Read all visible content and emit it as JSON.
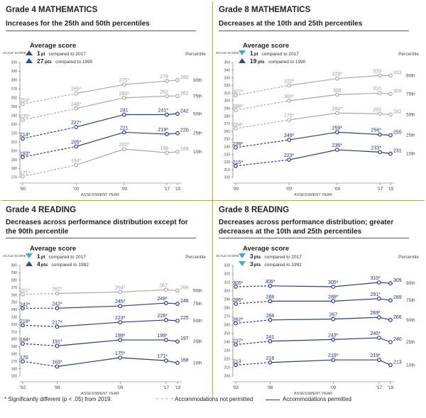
{
  "colors": {
    "gold": "#c9a227",
    "navy": "#2b3990",
    "gray": "#a7a9ac",
    "arrow_up": "#1f4e9a",
    "arrow_down": "#3fa9dd"
  },
  "footer": {
    "note": "* Significantly different (p < .05) from 2019.",
    "legend_dashed": "Accommodations not permitted",
    "legend_solid": "Accommodations permitted"
  },
  "chart_data": [
    {
      "type": "line",
      "title": "Grade 4 MATHEMATICS",
      "subtitle": "Increases for the 25th and 50th percentiles",
      "legend_title": "Average score",
      "legend_rows": [
        {
          "arrow": "up",
          "value": "1",
          "unit": "pt",
          "text": "compared to 2017"
        },
        {
          "arrow": "up",
          "value": "27",
          "unit": "pts",
          "text": "compared to 1990"
        }
      ],
      "ylabel": "SCALE SCORE",
      "percentile_label": "Percentile",
      "xlabel": "ASSESSMENT YEAR",
      "ylim": [
        170,
        300
      ],
      "yticks": [
        170,
        180,
        190,
        200,
        210,
        220,
        230,
        240,
        250,
        260,
        270,
        280,
        290,
        300
      ],
      "xticks": [
        {
          "year": 1990,
          "label": "'90"
        },
        {
          "year": 2000,
          "label": "'00"
        },
        {
          "year": 2009,
          "label": "'09"
        },
        {
          "year": 2017,
          "label": "'17"
        },
        {
          "year": 2019,
          "label": "'19"
        }
      ],
      "series": [
        {
          "name": "90th",
          "highlight": false,
          "points": [
            {
              "x": 1990,
              "y": 253,
              "label": "253*",
              "dash": true
            },
            {
              "x": 2000,
              "y": 265,
              "label": "265*"
            },
            {
              "x": 2009,
              "y": 275,
              "label": "275*"
            },
            {
              "x": 2017,
              "y": 279,
              "label": "279"
            },
            {
              "x": 2019,
              "y": 280,
              "label": "280"
            }
          ]
        },
        {
          "name": "75th",
          "highlight": false,
          "points": [
            {
              "x": 1990,
              "y": 235,
              "label": "235*",
              "dash": true
            },
            {
              "x": 2000,
              "y": 248,
              "label": "248*"
            },
            {
              "x": 2009,
              "y": 260,
              "label": "260*"
            },
            {
              "x": 2017,
              "y": 262,
              "label": "262"
            },
            {
              "x": 2019,
              "y": 262,
              "label": "262"
            }
          ]
        },
        {
          "name": "50th",
          "highlight": true,
          "points": [
            {
              "x": 1990,
              "y": 214,
              "label": "214*",
              "dash": true
            },
            {
              "x": 2000,
              "y": 227,
              "label": "227*"
            },
            {
              "x": 2009,
              "y": 241,
              "label": "241"
            },
            {
              "x": 2017,
              "y": 241,
              "label": "241*"
            },
            {
              "x": 2019,
              "y": 242,
              "label": "242"
            }
          ]
        },
        {
          "name": "25th",
          "highlight": true,
          "points": [
            {
              "x": 1990,
              "y": 193,
              "label": "193*",
              "dash": true
            },
            {
              "x": 2000,
              "y": 205,
              "label": "205*"
            },
            {
              "x": 2009,
              "y": 221,
              "label": "221"
            },
            {
              "x": 2017,
              "y": 219,
              "label": "219*"
            },
            {
              "x": 2019,
              "y": 220,
              "label": "220"
            }
          ]
        },
        {
          "name": "10th",
          "highlight": false,
          "points": [
            {
              "x": 1990,
              "y": 171,
              "label": "171*",
              "dash": true
            },
            {
              "x": 2000,
              "y": 184,
              "label": "184*"
            },
            {
              "x": 2009,
              "y": 202,
              "label": "202*"
            },
            {
              "x": 2017,
              "y": 198,
              "label": "198"
            },
            {
              "x": 2019,
              "y": 199,
              "label": "199"
            }
          ]
        }
      ]
    },
    {
      "type": "line",
      "title": "Grade 8 MATHEMATICS",
      "subtitle": "Decreases at the 10th and 25th percentiles",
      "legend_title": "Average score",
      "legend_rows": [
        {
          "arrow": "down",
          "value": "1",
          "unit": "pt",
          "text": "compared to 2017"
        },
        {
          "arrow": "up",
          "value": "19",
          "unit": "pts",
          "text": "compared to 1990"
        }
      ],
      "ylabel": "SCALE SCORE",
      "percentile_label": "Percentile",
      "xlabel": "ASSESSMENT YEAR",
      "ylim": [
        200,
        350
      ],
      "yticks": [
        200,
        210,
        220,
        230,
        240,
        250,
        260,
        270,
        280,
        290,
        300,
        310,
        320,
        330,
        340,
        350
      ],
      "xticks": [
        {
          "year": 1990,
          "label": "'90"
        },
        {
          "year": 2000,
          "label": "'00"
        },
        {
          "year": 2009,
          "label": "'09"
        },
        {
          "year": 2017,
          "label": "'17"
        },
        {
          "year": 2019,
          "label": "'19"
        }
      ],
      "series": [
        {
          "name": "90th",
          "highlight": false,
          "points": [
            {
              "x": 1990,
              "y": 307,
              "label": "307*",
              "dash": true
            },
            {
              "x": 2000,
              "y": 320,
              "label": "320*"
            },
            {
              "x": 2009,
              "y": 329,
              "label": "329*"
            },
            {
              "x": 2017,
              "y": 333,
              "label": "333"
            },
            {
              "x": 2019,
              "y": 333,
              "label": "333"
            }
          ]
        },
        {
          "name": "75th",
          "highlight": false,
          "points": [
            {
              "x": 1990,
              "y": 288,
              "label": "288*",
              "dash": true
            },
            {
              "x": 2000,
              "y": 300,
              "label": "300*"
            },
            {
              "x": 2009,
              "y": 308,
              "label": "308"
            },
            {
              "x": 2017,
              "y": 310,
              "label": "310"
            },
            {
              "x": 2019,
              "y": 309,
              "label": "309"
            }
          ]
        },
        {
          "name": "50th",
          "highlight": false,
          "points": [
            {
              "x": 1990,
              "y": 264,
              "label": "264*",
              "dash": true
            },
            {
              "x": 2000,
              "y": 275,
              "label": "275*"
            },
            {
              "x": 2009,
              "y": 284,
              "label": "284*"
            },
            {
              "x": 2017,
              "y": 283,
              "label": "283"
            },
            {
              "x": 2019,
              "y": 282,
              "label": "282"
            }
          ]
        },
        {
          "name": "25th",
          "highlight": true,
          "points": [
            {
              "x": 1990,
              "y": 239,
              "label": "239*",
              "dash": true
            },
            {
              "x": 2000,
              "y": 249,
              "label": "249*"
            },
            {
              "x": 2009,
              "y": 259,
              "label": "259*"
            },
            {
              "x": 2017,
              "y": 256,
              "label": "256*"
            },
            {
              "x": 2019,
              "y": 255,
              "label": "255"
            }
          ]
        },
        {
          "name": "10th",
          "highlight": true,
          "points": [
            {
              "x": 1990,
              "y": 215,
              "label": "215*",
              "dash": true
            },
            {
              "x": 2000,
              "y": 223,
              "label": "223*"
            },
            {
              "x": 2009,
              "y": 236,
              "label": "236*"
            },
            {
              "x": 2017,
              "y": 233,
              "label": "233*"
            },
            {
              "x": 2019,
              "y": 231,
              "label": "231"
            }
          ]
        }
      ]
    },
    {
      "type": "line",
      "title": "Grade 4 READING",
      "subtitle": "Decreases across performance distribution except for the 90th percentile",
      "legend_title": "Average score",
      "legend_rows": [
        {
          "arrow": "down",
          "value": "1",
          "unit": "pt",
          "text": "compared to 2017"
        },
        {
          "arrow": "up",
          "value": "4",
          "unit": "pts",
          "text": "compared to 1992"
        }
      ],
      "ylabel": "SCALE SCORE",
      "percentile_label": "Percentile",
      "xlabel": "ASSESSMENT YEAR",
      "ylim": [
        150,
        300
      ],
      "yticks": [
        150,
        160,
        170,
        180,
        190,
        200,
        210,
        220,
        230,
        240,
        250,
        260,
        270,
        280,
        290,
        300
      ],
      "xticks": [
        {
          "year": 1992,
          "label": "'92"
        },
        {
          "year": 1998,
          "label": "'98"
        },
        {
          "year": 2009,
          "label": "'09"
        },
        {
          "year": 2017,
          "label": "'17"
        },
        {
          "year": 2019,
          "label": "'19"
        }
      ],
      "series": [
        {
          "name": "90th",
          "highlight": false,
          "points": [
            {
              "x": 1992,
              "y": 261,
              "label": "261*",
              "dash": true
            },
            {
              "x": 1998,
              "y": 262,
              "label": "262*"
            },
            {
              "x": 2009,
              "y": 264,
              "label": "264*"
            },
            {
              "x": 2017,
              "y": 267,
              "label": "267"
            },
            {
              "x": 2019,
              "y": 266,
              "label": "266"
            }
          ]
        },
        {
          "name": "75th",
          "highlight": true,
          "points": [
            {
              "x": 1992,
              "y": 242,
              "label": "242*",
              "dash": true
            },
            {
              "x": 1998,
              "y": 242,
              "label": "242*"
            },
            {
              "x": 2009,
              "y": 245,
              "label": "245*"
            },
            {
              "x": 2017,
              "y": 249,
              "label": "249*"
            },
            {
              "x": 2019,
              "y": 248,
              "label": "248"
            }
          ]
        },
        {
          "name": "50th",
          "highlight": true,
          "points": [
            {
              "x": 1992,
              "y": 219,
              "label": "219*",
              "dash": true
            },
            {
              "x": 1998,
              "y": 217,
              "label": "217*"
            },
            {
              "x": 2009,
              "y": 223,
              "label": "223*"
            },
            {
              "x": 2017,
              "y": 226,
              "label": "226*"
            },
            {
              "x": 2019,
              "y": 225,
              "label": "225"
            }
          ]
        },
        {
          "name": "25th",
          "highlight": true,
          "points": [
            {
              "x": 1992,
              "y": 194,
              "label": "194*",
              "dash": true
            },
            {
              "x": 1998,
              "y": 191,
              "label": "191*"
            },
            {
              "x": 2009,
              "y": 199,
              "label": "199*"
            },
            {
              "x": 2017,
              "y": 199,
              "label": "199*"
            },
            {
              "x": 2019,
              "y": 197,
              "label": "197"
            }
          ]
        },
        {
          "name": "10th",
          "highlight": true,
          "points": [
            {
              "x": 1992,
              "y": 170,
              "label": "170",
              "dash": true
            },
            {
              "x": 1998,
              "y": 163,
              "label": "163*"
            },
            {
              "x": 2009,
              "y": 175,
              "label": "175*"
            },
            {
              "x": 2017,
              "y": 171,
              "label": "171*"
            },
            {
              "x": 2019,
              "y": 168,
              "label": "168"
            }
          ]
        }
      ]
    },
    {
      "type": "line",
      "title": "Grade 8 READING",
      "subtitle": "Decreases across performance distribution; greater decreases at the 10th and 25th percentiles",
      "legend_title": "Average score",
      "legend_rows": [
        {
          "arrow": "down",
          "value": "3",
          "unit": "pts",
          "text": "compared to 2017"
        },
        {
          "arrow": "down",
          "value": "3",
          "unit": "pts",
          "text": "compared to 1992"
        }
      ],
      "ylabel": "SCALE SCORE",
      "percentile_label": "Percentile",
      "xlabel": "ASSESSMENT YEAR",
      "ylim": [
        200,
        330
      ],
      "yticks": [
        200,
        210,
        220,
        230,
        240,
        250,
        260,
        270,
        280,
        290,
        300,
        310,
        320,
        330
      ],
      "xticks": [
        {
          "year": 1992,
          "label": "'92"
        },
        {
          "year": 1998,
          "label": "'98"
        },
        {
          "year": 2009,
          "label": "'09"
        },
        {
          "year": 2017,
          "label": "'17"
        },
        {
          "year": 2019,
          "label": "'19"
        }
      ],
      "series": [
        {
          "name": "90th",
          "highlight": true,
          "points": [
            {
              "x": 1992,
              "y": 305,
              "label": "305*",
              "dash": true
            },
            {
              "x": 1998,
              "y": 306,
              "label": "306*"
            },
            {
              "x": 2009,
              "y": 305,
              "label": "305*"
            },
            {
              "x": 2017,
              "y": 310,
              "label": "310*"
            },
            {
              "x": 2019,
              "y": 309,
              "label": "309"
            }
          ]
        },
        {
          "name": "75th",
          "highlight": true,
          "points": [
            {
              "x": 1992,
              "y": 285,
              "label": "285*",
              "dash": true
            },
            {
              "x": 1998,
              "y": 288,
              "label": "288"
            },
            {
              "x": 2009,
              "y": 288,
              "label": "288*"
            },
            {
              "x": 2017,
              "y": 291,
              "label": "291*"
            },
            {
              "x": 2019,
              "y": 289,
              "label": "289"
            }
          ]
        },
        {
          "name": "50th",
          "highlight": true,
          "points": [
            {
              "x": 1992,
              "y": 262,
              "label": "262*",
              "dash": true
            },
            {
              "x": 1998,
              "y": 266,
              "label": "266"
            },
            {
              "x": 2009,
              "y": 267,
              "label": "267"
            },
            {
              "x": 2017,
              "y": 269,
              "label": "269*"
            },
            {
              "x": 2019,
              "y": 266,
              "label": "266"
            }
          ]
        },
        {
          "name": "25th",
          "highlight": true,
          "points": [
            {
              "x": 1992,
              "y": 237,
              "label": "237*",
              "dash": true
            },
            {
              "x": 1998,
              "y": 241,
              "label": "241"
            },
            {
              "x": 2009,
              "y": 243,
              "label": "243*"
            },
            {
              "x": 2017,
              "y": 245,
              "label": "245*"
            },
            {
              "x": 2019,
              "y": 240,
              "label": "240"
            }
          ]
        },
        {
          "name": "10th",
          "highlight": true,
          "points": [
            {
              "x": 1992,
              "y": 213,
              "label": "213",
              "dash": true
            },
            {
              "x": 1998,
              "y": 216,
              "label": "216"
            },
            {
              "x": 2009,
              "y": 219,
              "label": "219*"
            },
            {
              "x": 2017,
              "y": 219,
              "label": "219*"
            },
            {
              "x": 2019,
              "y": 213,
              "label": "213"
            }
          ]
        }
      ]
    }
  ]
}
